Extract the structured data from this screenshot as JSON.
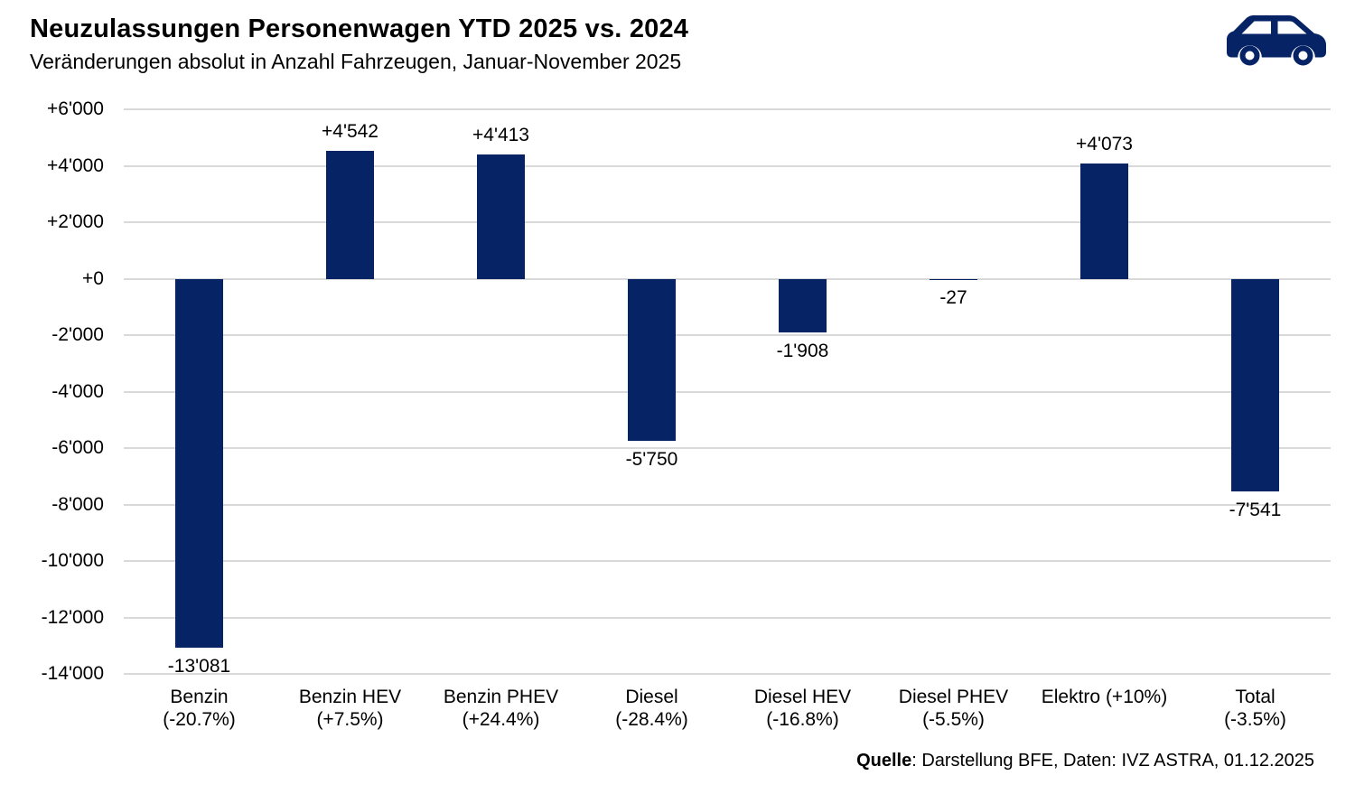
{
  "chart_data": {
    "type": "bar",
    "title": "Neuzulassungen Personenwagen YTD 2025 vs. 2024",
    "subtitle": "Veränderungen absolut in Anzahl Fahrzeugen, Januar-November 2025",
    "ylim": [
      -14000,
      6000
    ],
    "grid": true,
    "legend": false,
    "xlabel": "",
    "ylabel": "",
    "bar_color": "#062365",
    "grid_color": "#d9d9d9",
    "yticks": [
      {
        "value": 6000,
        "label": "+6'000"
      },
      {
        "value": 4000,
        "label": "+4'000"
      },
      {
        "value": 2000,
        "label": "+2'000"
      },
      {
        "value": 0,
        "label": "+0"
      },
      {
        "value": -2000,
        "label": "-2'000"
      },
      {
        "value": -4000,
        "label": "-4'000"
      },
      {
        "value": -6000,
        "label": "-6'000"
      },
      {
        "value": -8000,
        "label": "-8'000"
      },
      {
        "value": -10000,
        "label": "-10'000"
      },
      {
        "value": -12000,
        "label": "-12'000"
      },
      {
        "value": -14000,
        "label": "-14'000"
      }
    ],
    "bars": [
      {
        "category": "Benzin",
        "pct": "(-20.7%)",
        "value": -13081,
        "label": "-13'081"
      },
      {
        "category": "Benzin HEV",
        "pct": "(+7.5%)",
        "value": 4542,
        "label": "+4'542"
      },
      {
        "category": "Benzin PHEV",
        "pct": "(+24.4%)",
        "value": 4413,
        "label": "+4'413"
      },
      {
        "category": "Diesel",
        "pct": "(-28.4%)",
        "value": -5750,
        "label": "-5'750"
      },
      {
        "category": "Diesel HEV",
        "pct": "(-16.8%)",
        "value": -1908,
        "label": "-1'908"
      },
      {
        "category": "Diesel PHEV",
        "pct": "(-5.5%)",
        "value": -27,
        "label": "-27"
      },
      {
        "category": "Elektro (+10%)",
        "pct": "",
        "value": 4073,
        "label": "+4'073"
      },
      {
        "category": "Total",
        "pct": "(-3.5%)",
        "value": -7541,
        "label": "-7'541"
      }
    ]
  },
  "header": {
    "logo_icon": "car-icon",
    "logo_color": "#062365"
  },
  "footer": {
    "source_bold": "Quelle",
    "source_text": ": Darstellung BFE, Daten: IVZ ASTRA, 01.12.2025"
  }
}
